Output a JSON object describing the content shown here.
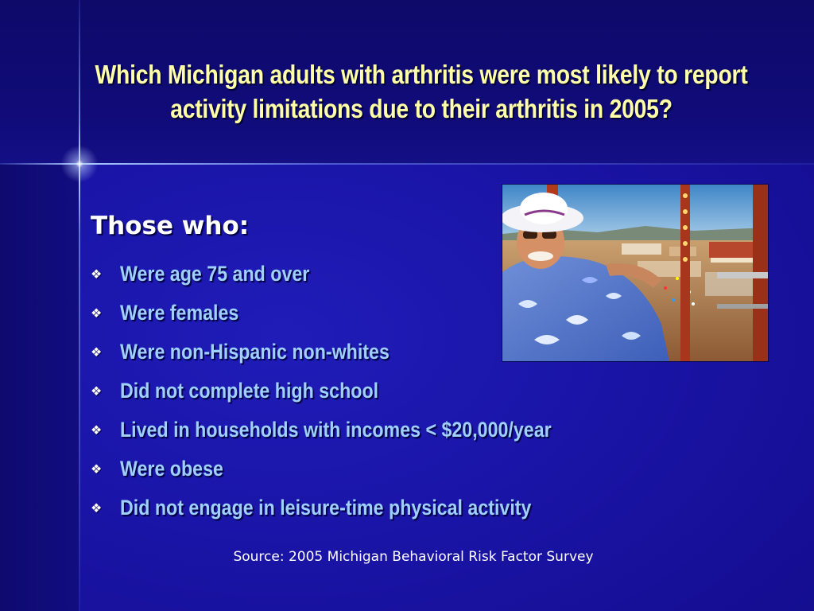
{
  "slide": {
    "title": "Which Michigan adults with arthritis were most likely to report activity limitations due to their arthritis in 2005?",
    "subheading": "Those who:",
    "bullets": [
      "Were age 75 and over",
      "Were females",
      "Were non-Hispanic non-whites",
      "Did not complete high school",
      "Lived in households with incomes < $20,000/year",
      "Were obese",
      "Did not engage in leisure-time physical activity"
    ],
    "bullet_icon": "diamond-bullet-icon",
    "source": "Source: 2005 Michigan Behavioral Risk Factor Survey",
    "photo_description_icon": "photo-woman-on-ferris-wheel"
  },
  "colors": {
    "background": "#1a14a8",
    "title": "#ffffaa",
    "subheading": "#ffffff",
    "bullet_text": "#9fd0ff",
    "source": "#ffffff"
  }
}
